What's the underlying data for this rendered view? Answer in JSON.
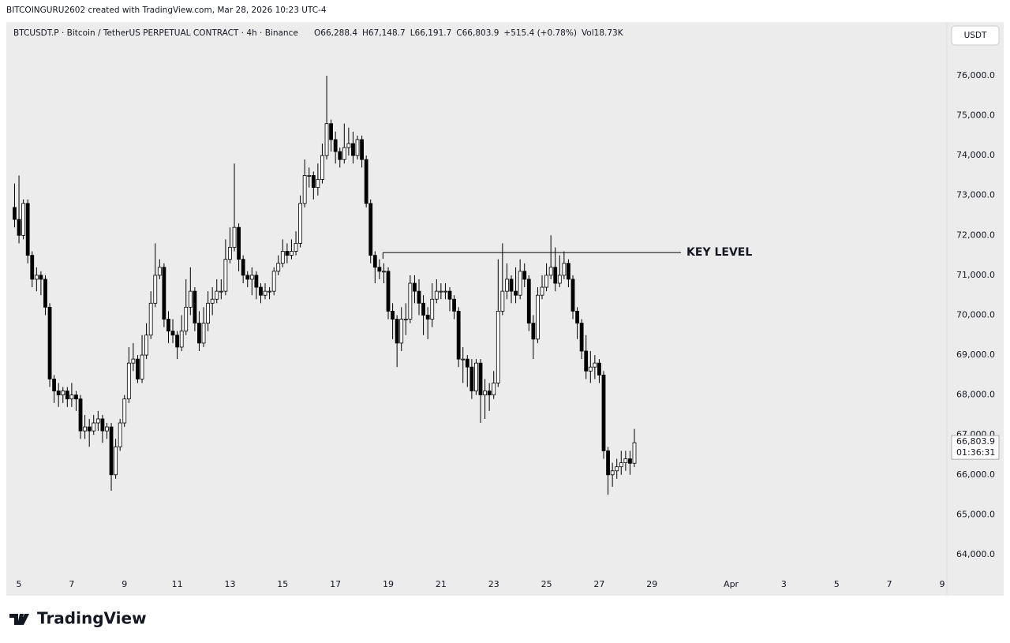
{
  "credit": "BITCOINGURU2602 created with TradingView.com, Mar 28, 2026 10:23 UTC-4",
  "brand": "TradingView",
  "chart_data": {
    "type": "candlestick",
    "symbol": "BTCUSDT.P · Bitcoin / TetherUS PERPETUAL CONTRACT · 4h · Binance",
    "legend": [
      "O66,288.4",
      "H67,148.7",
      "L66,191.7",
      "C66,803.9",
      "+515.4 (+0.78%)",
      "Vol18.73K"
    ],
    "currency": "USDT",
    "last_price_label": "66,803.9",
    "countdown": "01:36:31",
    "annotations": [
      {
        "text": "KEY LEVEL",
        "y": 71570,
        "x": [
          18.8,
          30.1
        ]
      }
    ],
    "up_color": "#ffffff",
    "down_color": "#000000",
    "xlim": [
      4.58,
      40.18
    ],
    "xticks": [
      5,
      7,
      9,
      11,
      13,
      15,
      17,
      19,
      21,
      23,
      25,
      27,
      29,
      {
        "value": 32,
        "label": "Apr"
      },
      {
        "value": 34,
        "label": "3"
      },
      {
        "value": 36,
        "label": "5"
      },
      {
        "value": 38,
        "label": "7"
      },
      {
        "value": 40,
        "label": "9"
      }
    ],
    "ylim": [
      63465,
      77305
    ],
    "yticks": [
      {
        "value": 64000,
        "label": "64,000.0"
      },
      {
        "value": 65000,
        "label": "65,000.0"
      },
      {
        "value": 66000,
        "label": "66,000.0"
      },
      {
        "value": 67000,
        "label": "67,000.0"
      },
      {
        "value": 68000,
        "label": "68,000.0"
      },
      {
        "value": 69000,
        "label": "69,000.0"
      },
      {
        "value": 70000,
        "label": "70,000.0"
      },
      {
        "value": 71000,
        "label": "71,000.0"
      },
      {
        "value": 72000,
        "label": "72,000.0"
      },
      {
        "value": 73000,
        "label": "73,000.0"
      },
      {
        "value": 74000,
        "label": "74,000.0"
      },
      {
        "value": 75000,
        "label": "75,000.0"
      },
      {
        "value": 76000,
        "label": "76,000.0"
      }
    ],
    "x": [
      4.833,
      5,
      5.167,
      5.333,
      5.5,
      5.667,
      5.833,
      6,
      6.167,
      6.333,
      6.5,
      6.667,
      6.833,
      7,
      7.167,
      7.333,
      7.5,
      7.667,
      7.833,
      8,
      8.167,
      8.333,
      8.5,
      8.667,
      8.833,
      9,
      9.167,
      9.333,
      9.5,
      9.667,
      9.833,
      10,
      10.167,
      10.333,
      10.5,
      10.667,
      10.833,
      11,
      11.167,
      11.333,
      11.5,
      11.667,
      11.833,
      12,
      12.167,
      12.333,
      12.5,
      12.667,
      12.833,
      13,
      13.167,
      13.333,
      13.5,
      13.667,
      13.833,
      14,
      14.167,
      14.333,
      14.5,
      14.667,
      14.833,
      15,
      15.167,
      15.333,
      15.5,
      15.667,
      15.833,
      16,
      16.167,
      16.333,
      16.5,
      16.667,
      16.833,
      17,
      17.167,
      17.333,
      17.5,
      17.667,
      17.833,
      18,
      18.167,
      18.333,
      18.5,
      18.667,
      18.833,
      19,
      19.167,
      19.333,
      19.5,
      19.667,
      19.833,
      20,
      20.167,
      20.333,
      20.5,
      20.667,
      20.833,
      21,
      21.167,
      21.333,
      21.5,
      21.667,
      21.833,
      22,
      22.167,
      22.333,
      22.5,
      22.667,
      22.833,
      23,
      23.167,
      23.333,
      23.5,
      23.667,
      23.833,
      24,
      24.167,
      24.333,
      24.5,
      24.667,
      24.833,
      25,
      25.167,
      25.333,
      25.5,
      25.667,
      25.833,
      26,
      26.167,
      26.333,
      26.5,
      26.667,
      26.833,
      27,
      27.167,
      27.333,
      27.5,
      27.667,
      27.833,
      28,
      28.167,
      28.333
    ],
    "open": [
      72700,
      72400,
      72000,
      72800,
      71500,
      70900,
      71000,
      70900,
      70200,
      68400,
      68100,
      68000,
      68100,
      67900,
      68000,
      67900,
      67100,
      67200,
      67100,
      67300,
      67400,
      67100,
      67200,
      66000,
      66700,
      67300,
      67900,
      68800,
      68900,
      68400,
      69000,
      69500,
      70300,
      71000,
      71200,
      69900,
      69600,
      69500,
      69200,
      69600,
      70200,
      70600,
      69800,
      69300,
      69800,
      70300,
      70400,
      70600,
      70600,
      71400,
      71700,
      72200,
      71400,
      71000,
      70900,
      71000,
      70700,
      70500,
      70600,
      70600,
      71100,
      71300,
      71600,
      71500,
      71600,
      71800,
      72800,
      73500,
      73500,
      73200,
      73400,
      74000,
      74800,
      74400,
      74100,
      73900,
      74200,
      74300,
      74000,
      74400,
      73900,
      72800,
      71500,
      71200,
      71100,
      71100,
      70100,
      69900,
      69300,
      69900,
      69900,
      70800,
      70600,
      70300,
      70000,
      69900,
      70400,
      70600,
      70600,
      70600,
      70400,
      70100,
      68900,
      68900,
      68700,
      68100,
      68800,
      68000,
      68100,
      68000,
      68300,
      70100,
      70600,
      70900,
      70600,
      70500,
      71100,
      70900,
      69800,
      69400,
      70500,
      70700,
      71000,
      71200,
      70800,
      71000,
      71300,
      70900,
      70100,
      69800,
      69100,
      68600,
      68700,
      68800,
      68500,
      66600,
      66000,
      66100,
      66200,
      66300,
      66400,
      66288.4
    ],
    "high": [
      73300,
      73500,
      72900,
      72900,
      71600,
      71200,
      71100,
      71000,
      70300,
      68500,
      68300,
      68200,
      68200,
      68300,
      68100,
      68000,
      67500,
      67400,
      67500,
      67600,
      67500,
      67300,
      67300,
      66900,
      67400,
      68000,
      69200,
      69300,
      69000,
      69500,
      69800,
      70600,
      71800,
      71400,
      71300,
      70100,
      69900,
      69600,
      70000,
      70900,
      71200,
      70700,
      70100,
      70200,
      70600,
      70700,
      70900,
      70900,
      71900,
      72200,
      73800,
      72300,
      71500,
      71100,
      71200,
      71100,
      70800,
      70800,
      70700,
      71200,
      71500,
      71900,
      71800,
      71900,
      72100,
      73000,
      73900,
      73700,
      73600,
      73800,
      74300,
      76000,
      74900,
      74600,
      74200,
      74800,
      74700,
      74600,
      74500,
      74500,
      74000,
      72900,
      71600,
      71400,
      71300,
      71200,
      70300,
      70000,
      70200,
      70300,
      71000,
      71000,
      70900,
      70500,
      70200,
      70800,
      70900,
      70800,
      70800,
      70700,
      70500,
      70200,
      69200,
      69000,
      68900,
      68900,
      68900,
      68400,
      68300,
      68600,
      71400,
      71800,
      71300,
      71000,
      71200,
      71400,
      71300,
      71000,
      70000,
      70700,
      71000,
      71300,
      72000,
      71700,
      71500,
      71600,
      71400,
      71000,
      70200,
      69900,
      69500,
      69100,
      69000,
      68900,
      68600,
      66700,
      66300,
      66400,
      66600,
      66600,
      66600,
      67148.7
    ],
    "low": [
      72200,
      71800,
      71900,
      71300,
      70700,
      70600,
      70500,
      70000,
      68200,
      67800,
      67700,
      67800,
      67700,
      67700,
      67600,
      66900,
      66900,
      66700,
      67000,
      67100,
      66800,
      66900,
      65600,
      65900,
      66600,
      67200,
      67800,
      68600,
      68300,
      68300,
      68900,
      69400,
      70200,
      70900,
      69700,
      69300,
      69300,
      68900,
      69100,
      69500,
      70000,
      69600,
      69100,
      69200,
      69600,
      70000,
      70300,
      70400,
      70500,
      71300,
      71600,
      71100,
      70800,
      70700,
      70500,
      70400,
      70300,
      70400,
      70400,
      70500,
      71000,
      71200,
      71300,
      71400,
      71500,
      71700,
      72700,
      73200,
      72900,
      73000,
      73300,
      73900,
      74100,
      73800,
      73700,
      73800,
      74000,
      73800,
      73900,
      73700,
      72700,
      71300,
      70800,
      70900,
      70800,
      69900,
      69400,
      68700,
      69100,
      69500,
      69800,
      70300,
      70000,
      69500,
      69400,
      69700,
      70300,
      70400,
      70400,
      70100,
      69900,
      68700,
      68300,
      68200,
      67900,
      68000,
      67300,
      67400,
      67600,
      67900,
      68200,
      70000,
      70400,
      70300,
      70300,
      70400,
      70700,
      69600,
      68900,
      69300,
      70400,
      70600,
      70900,
      70600,
      70700,
      70900,
      70700,
      69900,
      69400,
      68900,
      68400,
      68300,
      68400,
      68300,
      66400,
      65500,
      65700,
      65900,
      66000,
      66100,
      66000,
      66191.7
    ],
    "close": [
      72400,
      72000,
      72800,
      71500,
      70900,
      71000,
      70900,
      70200,
      68400,
      68100,
      68000,
      68100,
      67900,
      68000,
      67900,
      67100,
      67200,
      67100,
      67300,
      67400,
      67100,
      67200,
      66000,
      66700,
      67300,
      67900,
      68800,
      68900,
      68400,
      69000,
      69500,
      70300,
      71000,
      71200,
      69900,
      69600,
      69500,
      69200,
      69600,
      70200,
      70600,
      69800,
      69300,
      69800,
      70300,
      70400,
      70600,
      70600,
      71400,
      71700,
      72200,
      71400,
      71000,
      70900,
      71000,
      70700,
      70500,
      70600,
      70600,
      71100,
      71300,
      71600,
      71500,
      71600,
      71800,
      72800,
      73500,
      73500,
      73200,
      73400,
      74000,
      74800,
      74400,
      74100,
      73900,
      74200,
      74300,
      74000,
      74400,
      73900,
      72800,
      71500,
      71200,
      71100,
      71100,
      70100,
      69900,
      69300,
      69900,
      69900,
      70800,
      70600,
      70300,
      70000,
      69900,
      70400,
      70600,
      70600,
      70600,
      70400,
      70100,
      68900,
      68900,
      68700,
      68100,
      68800,
      68000,
      68100,
      68000,
      68300,
      70100,
      70600,
      70900,
      70600,
      70500,
      71100,
      70900,
      69800,
      69400,
      70500,
      70700,
      71000,
      71200,
      70800,
      71000,
      71300,
      70900,
      70100,
      69800,
      69100,
      68600,
      68700,
      68800,
      68500,
      66600,
      66000,
      66100,
      66200,
      66300,
      66400,
      66288.4,
      66803.9
    ]
  }
}
